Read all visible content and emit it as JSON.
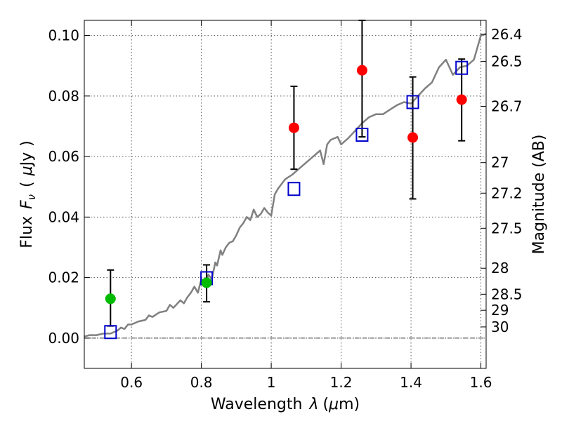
{
  "chart_data": {
    "type": "scatter",
    "title": "",
    "xlabel": "Wavelength",
    "xlabel_symbol": "λ",
    "xlabel_unit_open": "(",
    "xlabel_unit_mu": "μ",
    "xlabel_unit_rest": "m)",
    "ylabel_flux": "Flux",
    "ylabel_symbol": "F",
    "ylabel_subscript": "ν",
    "ylabel_paren_open": "(",
    "ylabel_mu": "μ",
    "ylabel_unit_rest": "Jy",
    "ylabel_paren_close": ")",
    "y2label": "Magnitude (AB)",
    "xlim": [
      0.465,
      1.615
    ],
    "ylim": [
      -0.01,
      0.105
    ],
    "grid": true,
    "x_ticks": [
      {
        "value": 0.6,
        "label": "0.6"
      },
      {
        "value": 0.8,
        "label": "0.8"
      },
      {
        "value": 1.0,
        "label": "1"
      },
      {
        "value": 1.2,
        "label": "1.2"
      },
      {
        "value": 1.4,
        "label": "1.4"
      },
      {
        "value": 1.6,
        "label": "1.6"
      }
    ],
    "y_ticks": [
      {
        "value": 0.0,
        "label": "0.00"
      },
      {
        "value": 0.02,
        "label": "0.02"
      },
      {
        "value": 0.04,
        "label": "0.04"
      },
      {
        "value": 0.06,
        "label": "0.06"
      },
      {
        "value": 0.08,
        "label": "0.08"
      },
      {
        "value": 0.1,
        "label": "0.10"
      }
    ],
    "y2_ticks": [
      {
        "flux": 0.1004,
        "label": "26.4"
      },
      {
        "flux": 0.0914,
        "label": "26.5"
      },
      {
        "flux": 0.0766,
        "label": "26.7"
      },
      {
        "flux": 0.058,
        "label": "27"
      },
      {
        "flux": 0.0479,
        "label": "27.2"
      },
      {
        "flux": 0.0363,
        "label": "27.5"
      },
      {
        "flux": 0.0231,
        "label": "28"
      },
      {
        "flux": 0.0145,
        "label": "28.5"
      },
      {
        "flux": 0.0092,
        "label": "29"
      },
      {
        "flux": 0.0037,
        "label": "30"
      }
    ],
    "zero_line": 0.0,
    "series": [
      {
        "name": "observed-green",
        "color": "#00bb00",
        "marker": "circle",
        "points": [
          {
            "x": 0.54,
            "y": 0.013
          },
          {
            "x": 0.815,
            "y": 0.0183
          }
        ]
      },
      {
        "name": "observed-red",
        "color": "#ff0000",
        "marker": "circle",
        "points": [
          {
            "x": 1.065,
            "y": 0.0695
          },
          {
            "x": 1.26,
            "y": 0.0885
          },
          {
            "x": 1.405,
            "y": 0.0663
          },
          {
            "x": 1.545,
            "y": 0.0788
          }
        ]
      },
      {
        "name": "model-photometry",
        "color": "#0000cc",
        "marker": "square",
        "points": [
          {
            "x": 0.54,
            "y": 0.002
          },
          {
            "x": 0.815,
            "y": 0.0198
          },
          {
            "x": 1.065,
            "y": 0.0493
          },
          {
            "x": 1.26,
            "y": 0.0672
          },
          {
            "x": 1.405,
            "y": 0.078
          },
          {
            "x": 1.545,
            "y": 0.0893
          }
        ]
      },
      {
        "name": "model-spectrum",
        "color": "#808080",
        "type": "line",
        "x": [
          0.465,
          0.48,
          0.5,
          0.52,
          0.54,
          0.56,
          0.57,
          0.58,
          0.59,
          0.6,
          0.62,
          0.64,
          0.65,
          0.66,
          0.68,
          0.7,
          0.71,
          0.72,
          0.74,
          0.75,
          0.76,
          0.77,
          0.78,
          0.79,
          0.8,
          0.81,
          0.82,
          0.83,
          0.84,
          0.845,
          0.855,
          0.86,
          0.87,
          0.88,
          0.89,
          0.9,
          0.91,
          0.92,
          0.93,
          0.94,
          0.95,
          0.96,
          0.97,
          0.98,
          0.99,
          1.0,
          1.01,
          1.02,
          1.04,
          1.06,
          1.08,
          1.1,
          1.12,
          1.14,
          1.15,
          1.16,
          1.17,
          1.19,
          1.2,
          1.22,
          1.24,
          1.26,
          1.28,
          1.3,
          1.32,
          1.34,
          1.36,
          1.38,
          1.4,
          1.42,
          1.44,
          1.46,
          1.47,
          1.48,
          1.5,
          1.52,
          1.54,
          1.56,
          1.58,
          1.6,
          1.615
        ],
        "y": [
          0.0005,
          0.001,
          0.001,
          0.0015,
          0.0015,
          0.0025,
          0.0035,
          0.003,
          0.0045,
          0.0045,
          0.0055,
          0.006,
          0.0075,
          0.007,
          0.0085,
          0.009,
          0.011,
          0.01,
          0.0125,
          0.0115,
          0.0135,
          0.015,
          0.017,
          0.015,
          0.0195,
          0.018,
          0.021,
          0.0195,
          0.025,
          0.024,
          0.029,
          0.0275,
          0.03,
          0.0315,
          0.032,
          0.034,
          0.0365,
          0.038,
          0.04,
          0.039,
          0.0425,
          0.04,
          0.041,
          0.043,
          0.0415,
          0.0405,
          0.0475,
          0.0495,
          0.0525,
          0.054,
          0.056,
          0.058,
          0.06,
          0.062,
          0.0575,
          0.064,
          0.0655,
          0.0665,
          0.064,
          0.066,
          0.0685,
          0.071,
          0.073,
          0.074,
          0.074,
          0.0755,
          0.077,
          0.078,
          0.0775,
          0.08,
          0.0825,
          0.0845,
          0.087,
          0.0895,
          0.092,
          0.087,
          0.0895,
          0.09,
          0.092,
          0.1,
          0.1005
        ]
      }
    ],
    "error_bars": [
      {
        "x": 0.54,
        "low": 0.004,
        "high": 0.0225
      },
      {
        "x": 0.815,
        "low": 0.012,
        "high": 0.0242
      },
      {
        "x": 1.065,
        "low": 0.0558,
        "high": 0.0832
      },
      {
        "x": 1.26,
        "low": 0.0665,
        "high": 0.105
      },
      {
        "x": 1.405,
        "low": 0.046,
        "high": 0.0863
      },
      {
        "x": 1.545,
        "low": 0.0652,
        "high": 0.0922
      }
    ]
  }
}
